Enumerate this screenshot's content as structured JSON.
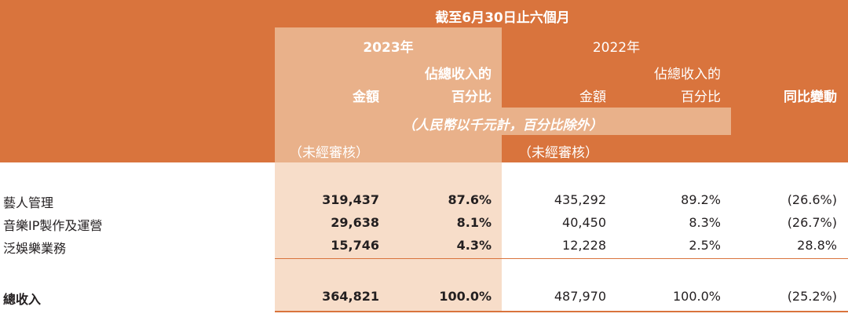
{
  "header": {
    "period": "截至6月30日止六個月",
    "year_2023": "2023年",
    "year_2022": "2022年",
    "amount": "金額",
    "pct_line1": "佔總收入的",
    "pct_line2": "百分比",
    "yoy": "同比變動",
    "currency_note": "（人民幣以千元計，百分比除外）",
    "unaudited_2023": "（未經審核）",
    "unaudited_2022": "（未經審核）"
  },
  "rows": [
    {
      "label": "藝人管理",
      "amt_2023": "319,437",
      "pct_2023": "87.6%",
      "amt_2022": "435,292",
      "pct_2022": "89.2%",
      "yoy": "(26.6%)"
    },
    {
      "label": "音樂IP製作及運營",
      "amt_2023": "29,638",
      "pct_2023": "8.1%",
      "amt_2022": "40,450",
      "pct_2022": "8.3%",
      "yoy": "(26.7%)"
    },
    {
      "label": "泛娛樂業務",
      "amt_2023": "15,746",
      "pct_2023": "4.3%",
      "amt_2022": "12,228",
      "pct_2022": "2.5%",
      "yoy": "28.8%"
    }
  ],
  "total": {
    "label": "總收入",
    "amt_2023": "364,821",
    "pct_2023": "100.0%",
    "amt_2022": "487,970",
    "pct_2022": "100.0%",
    "yoy": "(25.2%)"
  },
  "colors": {
    "band": "#d9743d",
    "highlight_dark": "#e9b18a",
    "highlight_light": "#f7ddc9",
    "text": "#231f20"
  }
}
